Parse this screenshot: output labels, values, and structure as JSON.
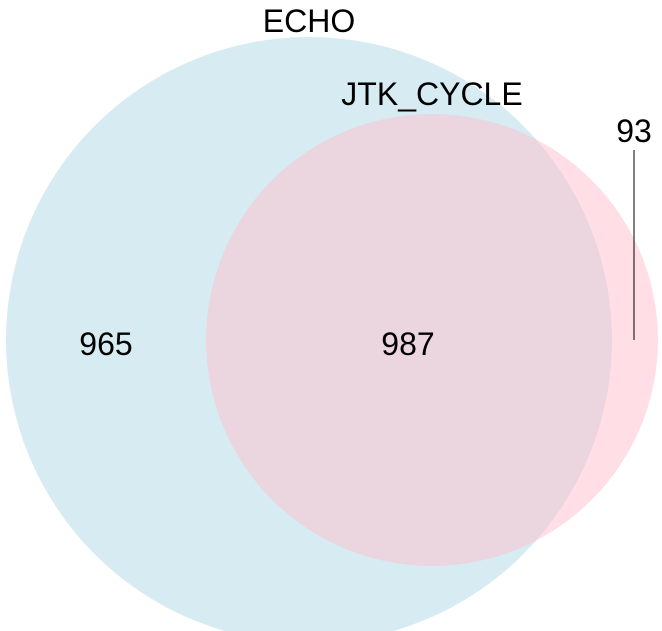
{
  "diagram": {
    "type": "venn",
    "sets": [
      {
        "name": "ECHO",
        "color": "#ADD8E6"
      },
      {
        "name": "JTK_CYCLE",
        "color": "#FFC0CB"
      }
    ],
    "regions": {
      "echo_only": "965",
      "overlap": "987",
      "jtk_only": "93"
    }
  }
}
